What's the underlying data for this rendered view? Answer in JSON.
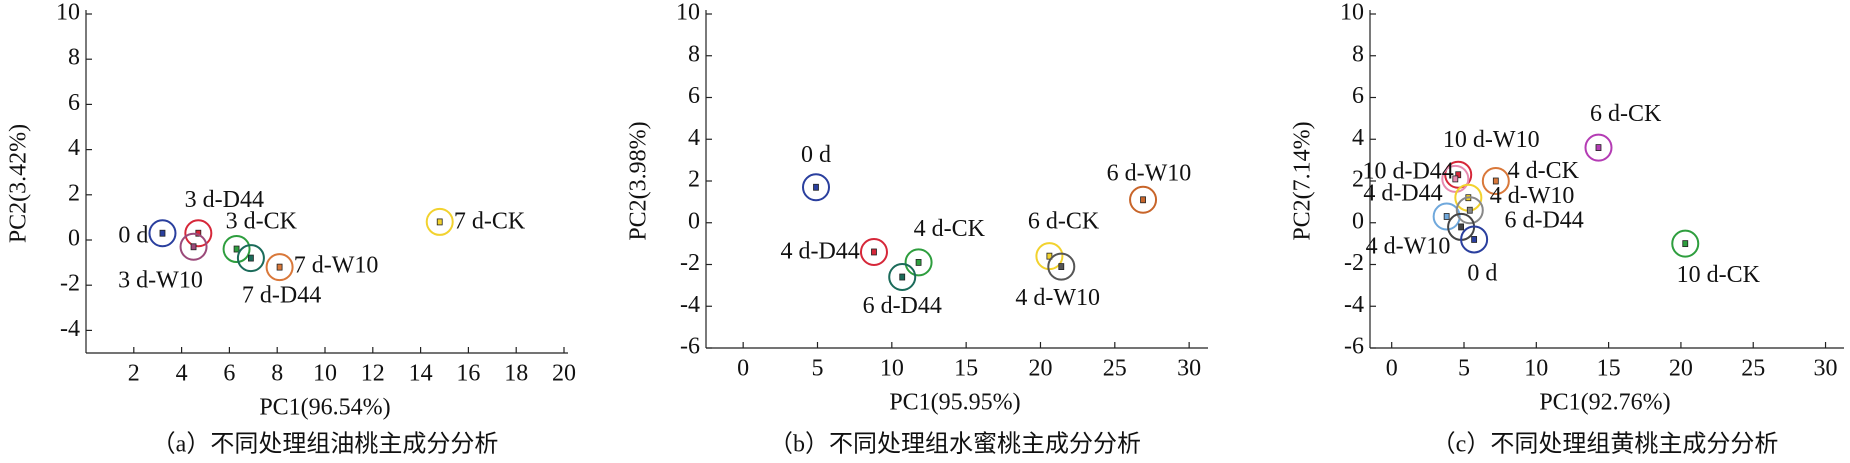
{
  "chart_data": [
    {
      "type": "scatter",
      "title": "（a）不同处理组油桃主成分分析",
      "x_label": "PC1(96.54%)",
      "y_label": "PC2(3.42%)",
      "xlim": [
        0,
        20
      ],
      "ylim": [
        -5,
        10
      ],
      "xticks": [
        2,
        4,
        6,
        8,
        10,
        12,
        14,
        16,
        18,
        20
      ],
      "yticks": [
        -4,
        -2,
        0,
        2,
        4,
        6,
        8,
        10
      ],
      "series": [
        {
          "name": "0 d",
          "color": "#2a3f9e",
          "x": [
            3.2
          ],
          "values": [
            0.3
          ]
        },
        {
          "name": "3 d-D44",
          "color": "#d62739",
          "x": [
            4.7
          ],
          "values": [
            0.3
          ]
        },
        {
          "name": "3 d-CK",
          "color": "#2e9e3e",
          "x": [
            6.3
          ],
          "values": [
            -0.4
          ]
        },
        {
          "name": "3 d-W10",
          "color": "#9b4a7a",
          "x": [
            4.5
          ],
          "values": [
            -0.3
          ]
        },
        {
          "name": "7 d-W10",
          "color": "#d9783a",
          "x": [
            8.1
          ],
          "values": [
            -1.2
          ]
        },
        {
          "name": "7 d-D44",
          "color": "#1b6b5a",
          "x": [
            6.9
          ],
          "values": [
            -0.8
          ]
        },
        {
          "name": "7 d-CK",
          "color": "#f2d22e",
          "x": [
            14.8
          ],
          "values": [
            0.8
          ]
        }
      ]
    },
    {
      "type": "scatter",
      "title": "（b）不同处理组水蜜桃主成分分析",
      "x_label": "PC1(95.95%)",
      "y_label": "PC2(3.98%)",
      "xlim": [
        -2.5,
        31
      ],
      "ylim": [
        -6,
        10
      ],
      "xticks": [
        0,
        5,
        10,
        15,
        20,
        25,
        30
      ],
      "yticks": [
        -6,
        -4,
        -2,
        0,
        2,
        4,
        6,
        8,
        10
      ],
      "series": [
        {
          "name": "0 d",
          "color": "#2a3f9e",
          "x": [
            4.9
          ],
          "values": [
            1.7
          ]
        },
        {
          "name": "4 d-D44",
          "color": "#d62739",
          "x": [
            8.8
          ],
          "values": [
            -1.4
          ]
        },
        {
          "name": "4 d-CK",
          "color": "#2e9e3e",
          "x": [
            11.8
          ],
          "values": [
            -1.9
          ]
        },
        {
          "name": "6 d-D44",
          "color": "#1b6b5a",
          "x": [
            10.7
          ],
          "values": [
            -2.6
          ]
        },
        {
          "name": "6 d-CK",
          "color": "#f2d22e",
          "x": [
            20.6
          ],
          "values": [
            -1.6
          ]
        },
        {
          "name": "4 d-W10",
          "color": "#555555",
          "x": [
            21.4
          ],
          "values": [
            -2.1
          ]
        },
        {
          "name": "6 d-W10",
          "color": "#c8652a",
          "x": [
            26.9
          ],
          "values": [
            1.1
          ]
        }
      ]
    },
    {
      "type": "scatter",
      "title": "（c）不同处理组黄桃主成分分析",
      "x_label": "PC1(92.76%)",
      "y_label": "PC2(7.14%)",
      "xlim": [
        -1.5,
        31
      ],
      "ylim": [
        -6,
        10
      ],
      "xticks": [
        0,
        5,
        10,
        15,
        20,
        25,
        30
      ],
      "yticks": [
        -6,
        -4,
        -2,
        0,
        2,
        4,
        6,
        8,
        10
      ],
      "series": [
        {
          "name": "6 d-CK",
          "color": "#b43cb4",
          "x": [
            14.3
          ],
          "values": [
            3.6
          ]
        },
        {
          "name": "10 d-W10",
          "color": "#d62739",
          "x": [
            4.6
          ],
          "values": [
            2.3
          ]
        },
        {
          "name": "10 d-D44",
          "color": "#e68ab0",
          "x": [
            4.4
          ],
          "values": [
            2.1
          ]
        },
        {
          "name": "4 d-CK",
          "color": "#d9783a",
          "x": [
            7.2
          ],
          "values": [
            2.0
          ]
        },
        {
          "name": "4 d-W10",
          "color": "#f2d22e",
          "x": [
            5.3
          ],
          "values": [
            1.2
          ]
        },
        {
          "name": "4 d-D44",
          "color": "#6fa8dc",
          "x": [
            3.8
          ],
          "values": [
            0.3
          ]
        },
        {
          "name": "6 d-D44",
          "color": "#888888",
          "x": [
            5.4
          ],
          "values": [
            0.6
          ]
        },
        {
          "name": "4 d-W10",
          "color": "#444444",
          "x": [
            4.8
          ],
          "values": [
            -0.2
          ]
        },
        {
          "name": "0 d",
          "color": "#2a3f9e",
          "x": [
            5.7
          ],
          "values": [
            -0.8
          ]
        },
        {
          "name": "10 d-CK",
          "color": "#2e9e3e",
          "x": [
            20.3
          ],
          "values": [
            -1.0
          ]
        }
      ]
    }
  ]
}
